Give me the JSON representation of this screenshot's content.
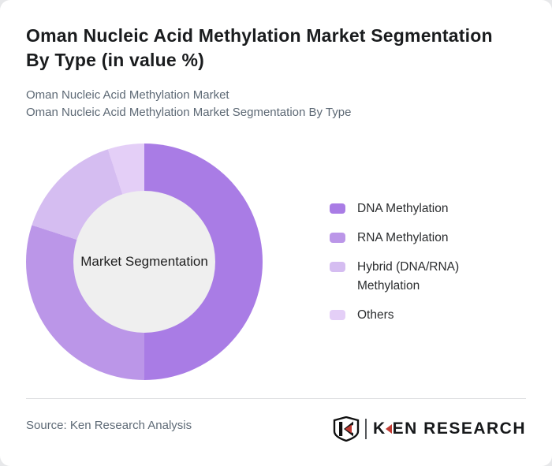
{
  "header": {
    "title": "Oman Nucleic Acid Methylation Market Segmentation\nBy Type (in value %)",
    "subtitle_line1": "Oman Nucleic Acid Methylation Market",
    "subtitle_line2": "Oman Nucleic Acid Methylation Market Segmentation By Type"
  },
  "chart_data": {
    "type": "pie",
    "variant": "donut",
    "title": "Oman Nucleic Acid Methylation Market Segmentation By Type (in value %)",
    "unit": "value %",
    "center_label": "Market Segmentation",
    "categories": [
      "DNA Methylation",
      "RNA Methylation",
      "Hybrid (DNA/RNA) Methylation",
      "Others"
    ],
    "values": [
      50,
      30,
      15,
      5
    ],
    "colors": [
      "#a97ce5",
      "#bb96e8",
      "#d5bdf1",
      "#e4cff7"
    ],
    "hole_color": "#efefef",
    "legend_position": "right",
    "start_angle_deg": 0,
    "direction": "clockwise"
  },
  "legend": {
    "items": [
      {
        "label": "DNA Methylation",
        "color": "#a97ce5"
      },
      {
        "label": "RNA Methylation",
        "color": "#bb96e8"
      },
      {
        "label": "Hybrid (DNA/RNA) Methylation",
        "color": "#d5bdf1"
      },
      {
        "label": "Others",
        "color": "#e4cff7"
      }
    ]
  },
  "footer": {
    "source": "Source: Ken Research Analysis",
    "logo_k": "K",
    "logo_rest": "EN RESEARCH"
  },
  "colors": {
    "card_background": "#ffffff",
    "page_background": "#e7e8ea",
    "title_text": "#1a1c1e",
    "subtitle_text": "#5d6975",
    "logo_red": "#c13b33"
  }
}
